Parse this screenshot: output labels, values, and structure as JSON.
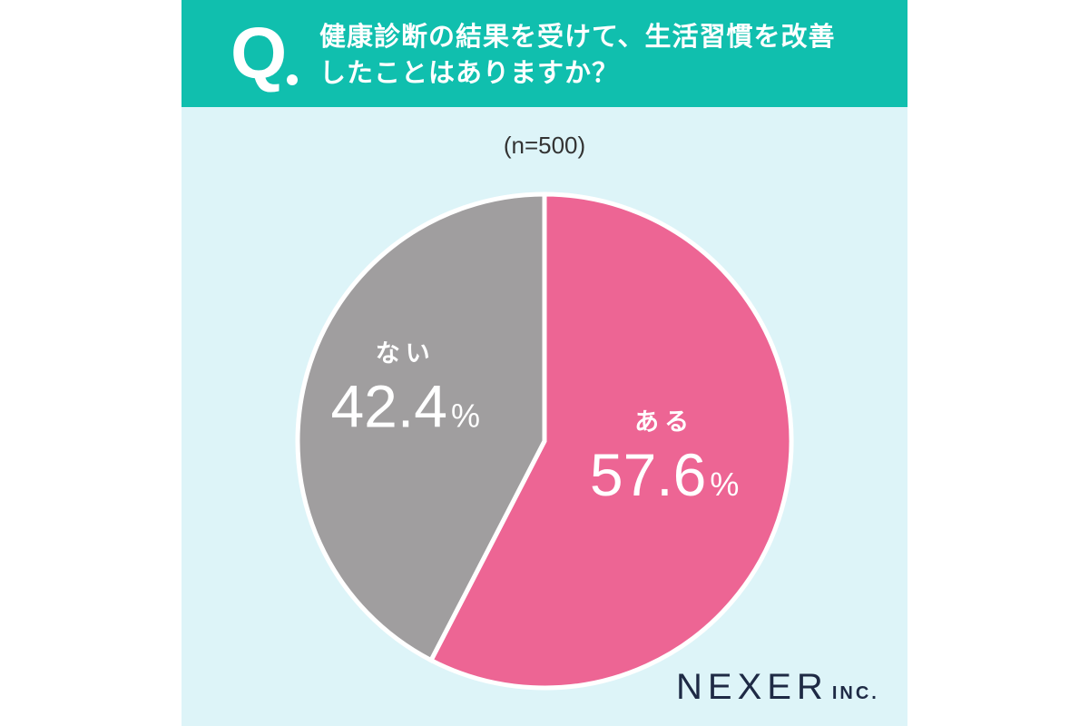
{
  "header": {
    "q_mark": "Q",
    "question_lines": [
      "健康診断の結果を受けて、生活習慣を改善",
      "したことはありますか？"
    ]
  },
  "sample_size": "(n=500)",
  "chart_data": {
    "type": "pie",
    "title": "健康診断の結果を受けて、生活習慣を改善したことはありますか？",
    "slices": [
      {
        "label": "ある",
        "value": 57.6,
        "display": "57.6",
        "unit": "%",
        "color": "#ed6594"
      },
      {
        "label": "ない",
        "value": 42.4,
        "display": "42.4",
        "unit": "%",
        "color": "#a09e9f"
      }
    ]
  },
  "logo": {
    "main": "NEXER",
    "sub": "INC."
  }
}
